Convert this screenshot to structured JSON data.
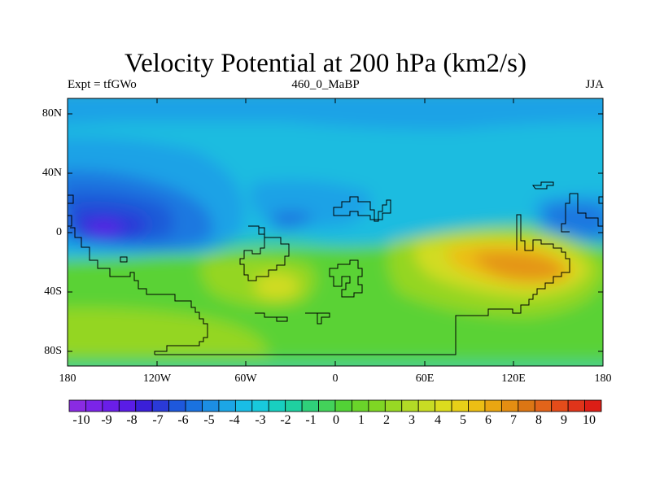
{
  "title": "Velocity Potential at 200 hPa (km2/s)",
  "subtitle_left": "Expt = tfGWo",
  "subtitle_center": "460_0_MaBP",
  "subtitle_right": "JJA",
  "y_tick_labels": [
    "80N",
    "40N",
    "0",
    "40S",
    "80S"
  ],
  "x_tick_labels": [
    "180",
    "120W",
    "60W",
    "0",
    "60E",
    "120E",
    "180"
  ],
  "colorbar": {
    "labels": [
      "-10",
      "-9",
      "-8",
      "-7",
      "-6",
      "-5",
      "-4",
      "-3",
      "-2",
      "-1",
      "0",
      "1",
      "2",
      "3",
      "4",
      "5",
      "6",
      "7",
      "8",
      "9",
      "10"
    ],
    "colors": [
      "#8a2be2",
      "#7b24e8",
      "#6a1ee8",
      "#5a1ce6",
      "#3a1fd8",
      "#2a3ad8",
      "#1e58dc",
      "#1a72e0",
      "#1c8ee4",
      "#1ca6e6",
      "#19bde6",
      "#18c9dc",
      "#18cfc0",
      "#1fd0a0",
      "#2fd07a",
      "#43d25a",
      "#52d236",
      "#6ad42a",
      "#7fd624",
      "#98d824",
      "#b2da26",
      "#c8dc24",
      "#dcdc1e",
      "#e8d018",
      "#ecbe14",
      "#eaa612",
      "#e48e12",
      "#dc7614",
      "#e2641a",
      "#e44c1a",
      "#e0341a",
      "#dc1e16"
    ]
  },
  "map_colors": {
    "background": "#4cd08a",
    "cyan": "#1cbce0",
    "light_blue": "#1ea2e6",
    "blue": "#1e78e0",
    "mid_blue": "#1e5ad8",
    "deep_blue": "#2a3ad8",
    "indigo": "#5a1ce6",
    "green": "#5ad236",
    "light_green": "#94d624",
    "yellow": "#d2dc22",
    "gold": "#ecbe14",
    "orange": "#e49412",
    "coast": "#000000"
  }
}
